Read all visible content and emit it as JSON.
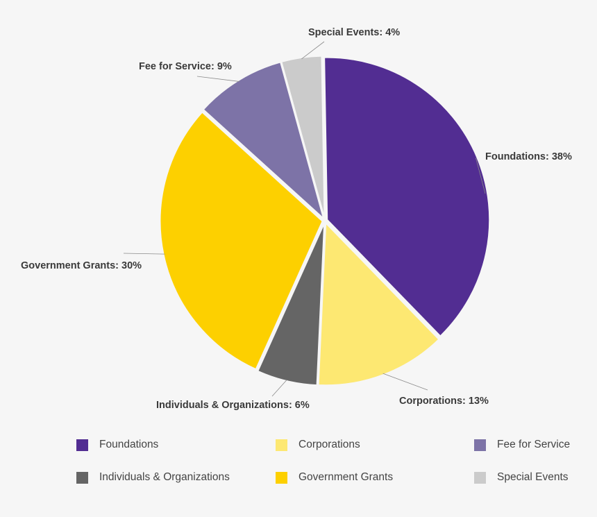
{
  "chart_data": {
    "type": "pie",
    "title": "",
    "slices": [
      {
        "name": "Foundations",
        "value": 38,
        "label": "Foundations: 38%",
        "color": "#522d92"
      },
      {
        "name": "Corporations",
        "value": 13,
        "label": "Corporations: 13%",
        "color": "#fde872"
      },
      {
        "name": "Individuals & Organizations",
        "value": 6,
        "label": "Individuals & Organizations: 6%",
        "color": "#656565"
      },
      {
        "name": "Government Grants",
        "value": 30,
        "label": "Government Grants: 30%",
        "color": "#fdd000"
      },
      {
        "name": "Fee for Service",
        "value": 9,
        "label": "Fee for Service: 9%",
        "color": "#7d73a7"
      },
      {
        "name": "Special Events",
        "value": 4,
        "label": "Special Events: 4%",
        "color": "#cbcbcb"
      }
    ],
    "legend": {
      "position": "bottom",
      "items": [
        {
          "label": "Foundations",
          "color": "#522d92"
        },
        {
          "label": "Corporations",
          "color": "#fde872"
        },
        {
          "label": "Fee for Service",
          "color": "#7d73a7"
        },
        {
          "label": "Individuals & Organizations",
          "color": "#656565"
        },
        {
          "label": "Government Grants",
          "color": "#fdd000"
        },
        {
          "label": "Special Events",
          "color": "#cbcbcb"
        }
      ]
    }
  }
}
